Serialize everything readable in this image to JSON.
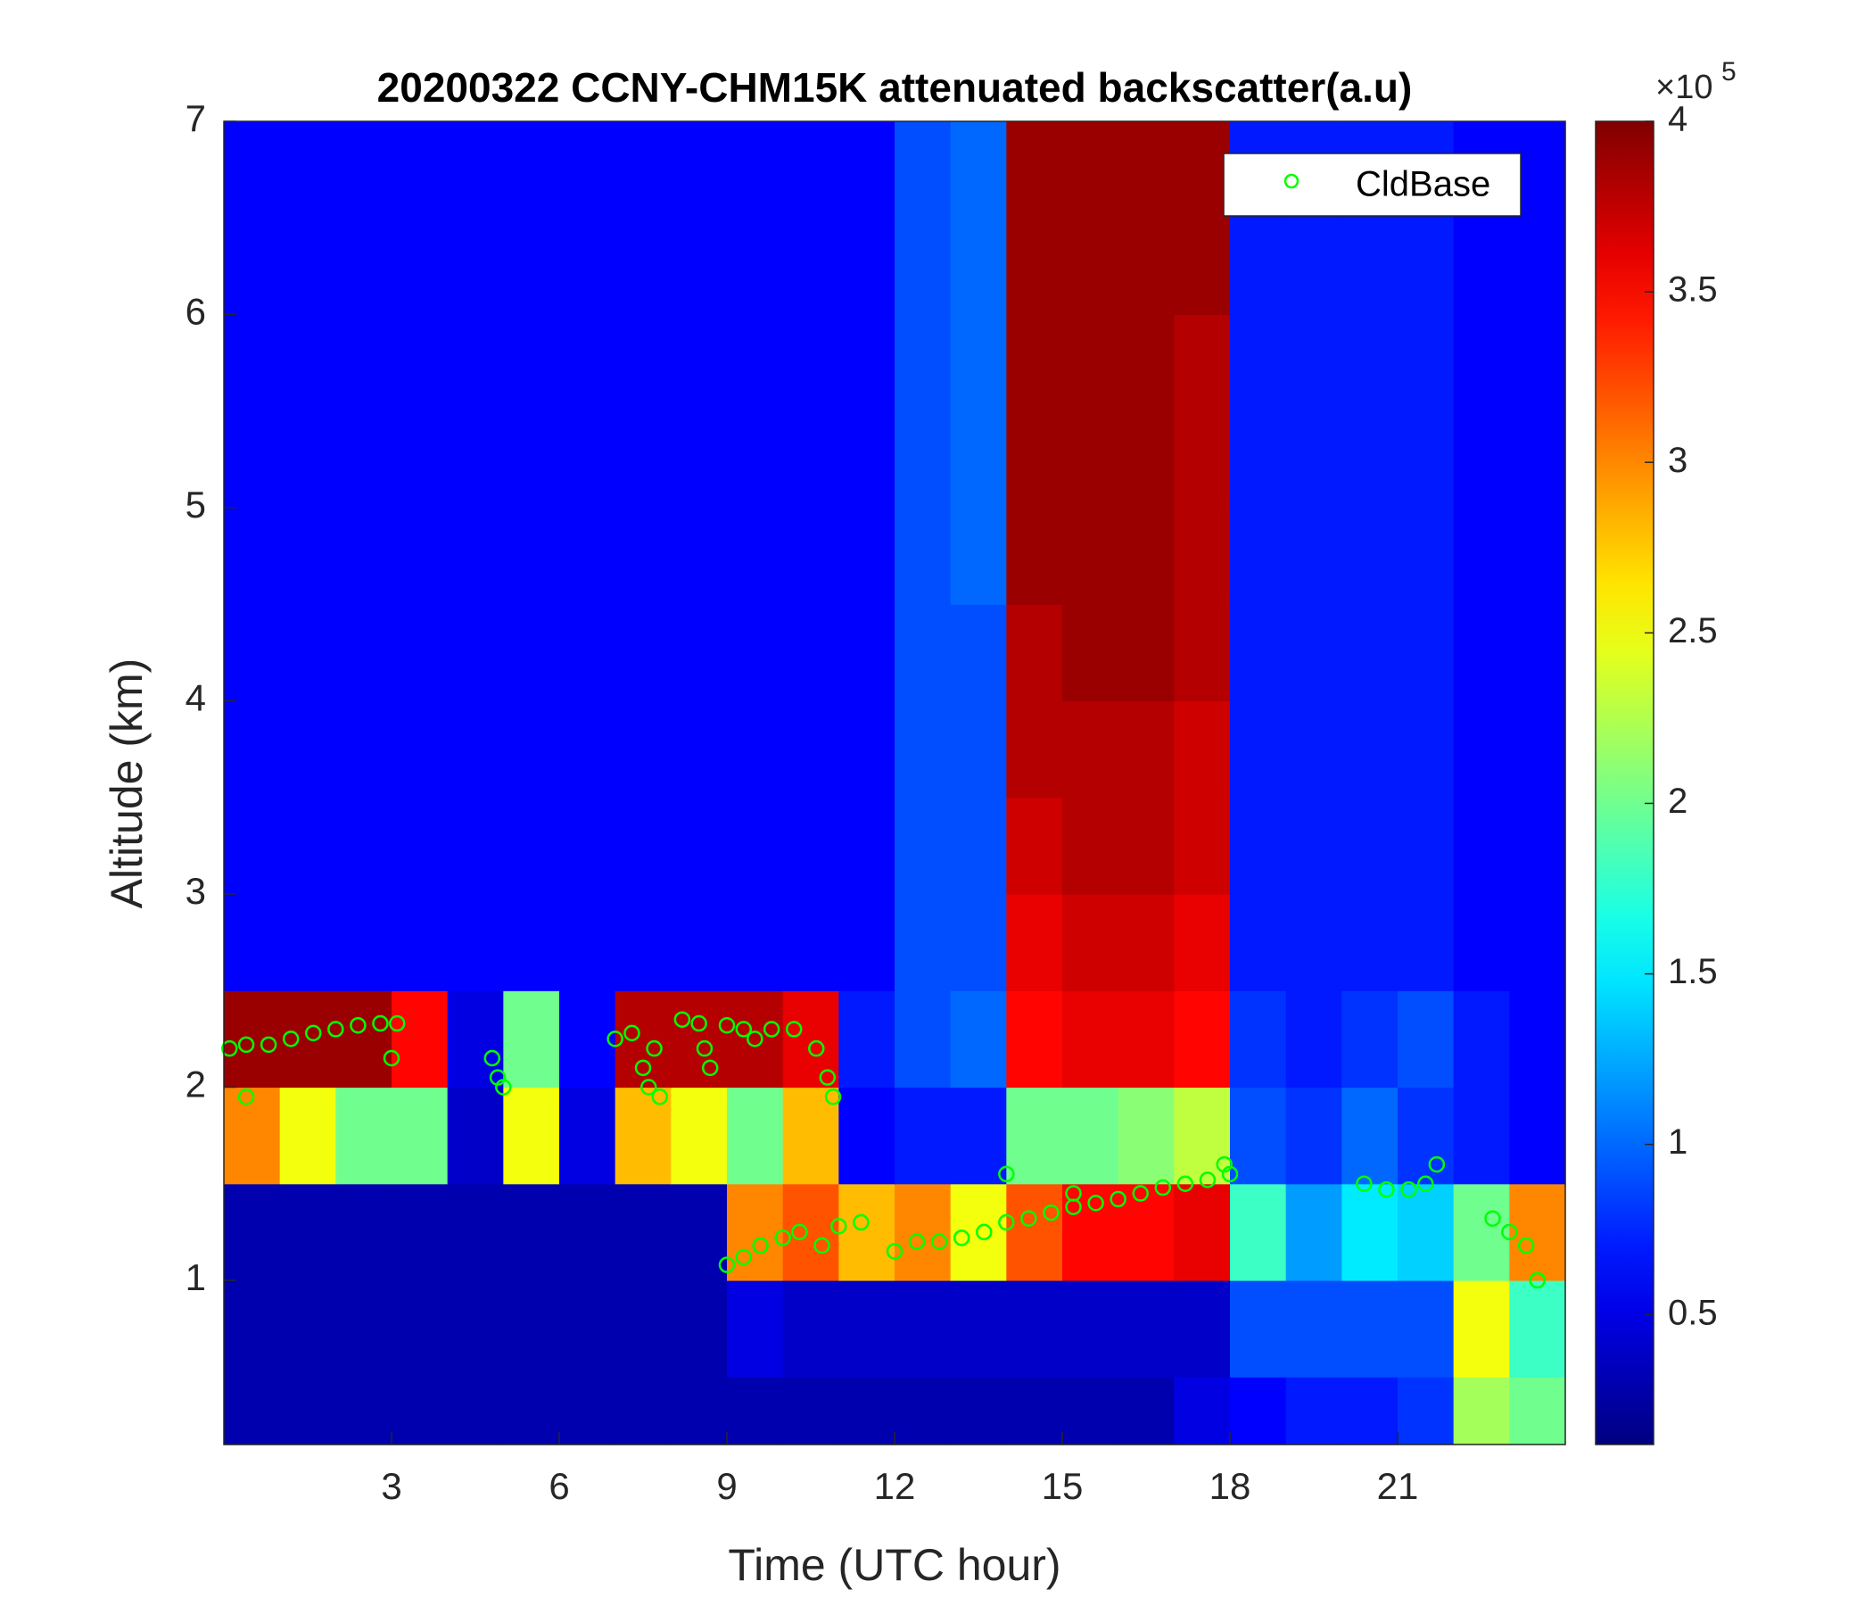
{
  "chart_data": {
    "type": "heatmap",
    "title": "20200322 CCNY-CHM15K attenuated backscatter(a.u)",
    "xlabel": "Time (UTC hour)",
    "ylabel": "Altitude (km)",
    "xlim": [
      0,
      24
    ],
    "ylim": [
      0.15,
      7
    ],
    "xticks": [
      3,
      6,
      9,
      12,
      15,
      18,
      21
    ],
    "yticks": [
      1,
      2,
      3,
      4,
      5,
      6,
      7
    ],
    "colormap": "jet",
    "clim": [
      0.12,
      4
    ],
    "cticks": [
      0.5,
      1,
      1.5,
      2,
      2.5,
      3,
      3.5,
      4
    ],
    "colorbar_base": "×10",
    "colorbar_exponent": 5,
    "legend": "upper right",
    "x_edges": [
      0,
      1,
      2,
      3,
      4,
      5,
      6,
      7,
      8,
      9,
      10,
      11,
      12,
      13,
      14,
      15,
      16,
      17,
      18,
      19,
      20,
      21,
      22,
      23,
      24
    ],
    "y_edges": [
      0.15,
      0.5,
      1,
      1.5,
      2,
      2.5,
      3,
      3.5,
      4,
      4.5,
      5,
      5.5,
      6,
      6.5,
      7
    ],
    "z": [
      [
        0.3,
        0.3,
        0.3,
        0.3,
        0.3,
        0.3,
        0.3,
        0.3,
        0.3,
        0.3,
        0.3,
        0.3,
        0.3,
        0.3,
        0.3,
        0.3,
        0.3,
        0.5,
        0.6,
        0.7,
        0.7,
        0.8,
        2.2,
        2.0
      ],
      [
        0.3,
        0.3,
        0.3,
        0.3,
        0.3,
        0.3,
        0.3,
        0.3,
        0.3,
        0.5,
        0.4,
        0.4,
        0.4,
        0.4,
        0.4,
        0.4,
        0.4,
        0.4,
        0.9,
        0.9,
        0.9,
        0.9,
        2.5,
        1.8
      ],
      [
        0.3,
        0.3,
        0.3,
        0.3,
        0.3,
        0.3,
        0.3,
        0.3,
        0.3,
        3.0,
        3.2,
        2.8,
        3.0,
        2.5,
        3.2,
        3.5,
        3.5,
        3.6,
        1.8,
        1.2,
        1.5,
        1.4,
        2.0,
        3.0
      ],
      [
        3.0,
        2.5,
        2.0,
        2.0,
        0.4,
        2.5,
        0.5,
        2.8,
        2.5,
        2.0,
        2.8,
        0.6,
        0.7,
        0.7,
        2.0,
        2.0,
        2.1,
        2.3,
        0.9,
        0.8,
        1.0,
        0.8,
        0.7,
        0.6
      ],
      [
        3.9,
        3.9,
        3.9,
        3.5,
        0.5,
        2.0,
        0.6,
        3.8,
        3.8,
        3.8,
        3.6,
        0.7,
        0.9,
        1.0,
        3.5,
        3.6,
        3.6,
        3.5,
        0.8,
        0.7,
        0.8,
        0.9,
        0.7,
        0.6
      ],
      [
        0.6,
        0.6,
        0.6,
        0.6,
        0.6,
        0.6,
        0.6,
        0.6,
        0.6,
        0.6,
        0.6,
        0.6,
        0.9,
        0.9,
        3.6,
        3.7,
        3.7,
        3.6,
        0.7,
        0.7,
        0.7,
        0.7,
        0.6,
        0.6
      ],
      [
        0.6,
        0.6,
        0.6,
        0.6,
        0.6,
        0.6,
        0.6,
        0.6,
        0.6,
        0.6,
        0.6,
        0.6,
        0.9,
        0.9,
        3.7,
        3.8,
        3.8,
        3.7,
        0.7,
        0.7,
        0.7,
        0.7,
        0.6,
        0.6
      ],
      [
        0.6,
        0.6,
        0.6,
        0.6,
        0.6,
        0.6,
        0.6,
        0.6,
        0.6,
        0.6,
        0.6,
        0.6,
        0.9,
        0.9,
        3.8,
        3.8,
        3.8,
        3.7,
        0.7,
        0.7,
        0.7,
        0.7,
        0.6,
        0.6
      ],
      [
        0.6,
        0.6,
        0.6,
        0.6,
        0.6,
        0.6,
        0.6,
        0.6,
        0.6,
        0.6,
        0.6,
        0.6,
        0.9,
        0.9,
        3.8,
        3.9,
        3.9,
        3.8,
        0.7,
        0.7,
        0.7,
        0.7,
        0.6,
        0.6
      ],
      [
        0.6,
        0.6,
        0.6,
        0.6,
        0.6,
        0.6,
        0.6,
        0.6,
        0.6,
        0.6,
        0.6,
        0.6,
        0.9,
        1.0,
        3.9,
        3.9,
        3.9,
        3.8,
        0.7,
        0.7,
        0.7,
        0.7,
        0.6,
        0.6
      ],
      [
        0.6,
        0.6,
        0.6,
        0.6,
        0.6,
        0.6,
        0.6,
        0.6,
        0.6,
        0.6,
        0.6,
        0.6,
        0.9,
        1.0,
        3.9,
        3.9,
        3.9,
        3.8,
        0.7,
        0.7,
        0.7,
        0.7,
        0.6,
        0.6
      ],
      [
        0.6,
        0.6,
        0.6,
        0.6,
        0.6,
        0.6,
        0.6,
        0.6,
        0.6,
        0.6,
        0.6,
        0.6,
        0.9,
        1.0,
        3.9,
        3.9,
        3.9,
        3.8,
        0.7,
        0.7,
        0.7,
        0.7,
        0.6,
        0.6
      ],
      [
        0.6,
        0.6,
        0.6,
        0.6,
        0.6,
        0.6,
        0.6,
        0.6,
        0.6,
        0.6,
        0.6,
        0.6,
        0.9,
        1.0,
        3.9,
        3.9,
        3.9,
        3.9,
        0.7,
        0.7,
        0.7,
        0.7,
        0.6,
        0.6
      ],
      [
        0.6,
        0.6,
        0.6,
        0.6,
        0.6,
        0.6,
        0.6,
        0.6,
        0.6,
        0.6,
        0.6,
        0.6,
        0.9,
        1.0,
        3.9,
        3.9,
        3.9,
        3.9,
        0.7,
        0.7,
        0.7,
        0.7,
        0.6,
        0.6
      ]
    ],
    "series": [
      {
        "name": "CldBase",
        "type": "scatter",
        "color": "#00ff00",
        "x": [
          0.1,
          0.4,
          0.8,
          1.2,
          1.6,
          2.0,
          2.4,
          2.8,
          3.1,
          0.4,
          3.0,
          4.8,
          4.9,
          5.0,
          7.0,
          7.3,
          7.5,
          7.6,
          7.8,
          7.7,
          8.2,
          8.5,
          8.6,
          8.7,
          9.0,
          9.3,
          9.5,
          9.8,
          10.2,
          10.6,
          10.8,
          10.9,
          9.0,
          9.3,
          9.6,
          10.0,
          10.3,
          10.7,
          11.0,
          11.4,
          12.0,
          12.4,
          12.8,
          13.2,
          13.6,
          14.0,
          14.4,
          14.8,
          15.2,
          15.6,
          16.0,
          16.4,
          16.8,
          17.2,
          17.6,
          17.9,
          18.0,
          20.4,
          20.8,
          21.2,
          21.5,
          21.7,
          22.7,
          23.0,
          23.3,
          23.5,
          14.0,
          15.2
        ],
        "y": [
          2.2,
          2.22,
          2.22,
          2.25,
          2.28,
          2.3,
          2.32,
          2.33,
          2.33,
          1.95,
          2.15,
          2.15,
          2.05,
          2.0,
          2.25,
          2.28,
          2.1,
          2.0,
          1.95,
          2.2,
          2.35,
          2.33,
          2.2,
          2.1,
          2.32,
          2.3,
          2.25,
          2.3,
          2.3,
          2.2,
          2.05,
          1.95,
          1.08,
          1.12,
          1.18,
          1.22,
          1.25,
          1.18,
          1.28,
          1.3,
          1.15,
          1.2,
          1.2,
          1.22,
          1.25,
          1.3,
          1.32,
          1.35,
          1.38,
          1.4,
          1.42,
          1.45,
          1.48,
          1.5,
          1.52,
          1.6,
          1.55,
          1.5,
          1.47,
          1.47,
          1.5,
          1.6,
          1.32,
          1.25,
          1.18,
          1.0,
          1.55,
          1.45
        ]
      }
    ]
  }
}
